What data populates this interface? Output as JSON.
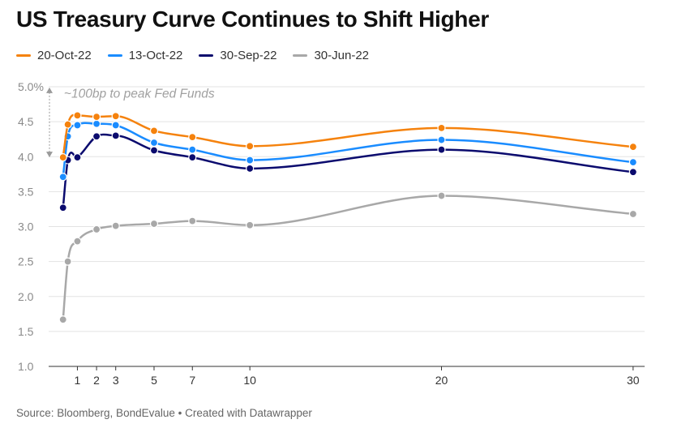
{
  "title": "US Treasury Curve Continues to Shift Higher",
  "footer": "Source: Bloomberg, BondEvalue • Created with Datawrapper",
  "colors": {
    "s2022_10_20": "#f5820d",
    "s2022_10_13": "#1a8cff",
    "s2022_09_30": "#0b0b6e",
    "s2022_06_30": "#a8a8a8",
    "grid": "#e3e3e3"
  },
  "chart_data": {
    "type": "line",
    "title": "US Treasury Curve Continues to Shift Higher",
    "xlabel": "",
    "ylabel": "",
    "x": [
      0.25,
      0.5,
      1,
      2,
      3,
      5,
      7,
      10,
      20,
      30
    ],
    "xticks": [
      1,
      2,
      3,
      5,
      7,
      10,
      20,
      30
    ],
    "xlim": [
      -0.5,
      30.6
    ],
    "yticks": [
      1.0,
      1.5,
      2.0,
      2.5,
      3.0,
      3.5,
      4.0,
      4.5,
      5.0
    ],
    "ytick_labels": [
      "1.0",
      "1.5",
      "2.0",
      "2.5",
      "3.0",
      "3.5",
      "4.0",
      "4.5",
      "5.0%"
    ],
    "ylim": [
      1.0,
      5.0
    ],
    "grid": true,
    "legend_position": "top-left",
    "series": [
      {
        "name": "20-Oct-22",
        "color_key": "s2022_10_20",
        "values": [
          3.99,
          4.46,
          4.59,
          4.57,
          4.58,
          4.37,
          4.28,
          4.15,
          4.41,
          4.14
        ]
      },
      {
        "name": "13-Oct-22",
        "color_key": "s2022_10_13",
        "values": [
          3.71,
          4.29,
          4.45,
          4.47,
          4.45,
          4.2,
          4.1,
          3.95,
          4.24,
          3.92
        ]
      },
      {
        "name": "30-Sep-22",
        "color_key": "s2022_09_30",
        "values": [
          3.27,
          3.95,
          3.99,
          4.29,
          4.3,
          4.09,
          3.99,
          3.83,
          4.1,
          3.78
        ]
      },
      {
        "name": "30-Jun-22",
        "color_key": "s2022_06_30",
        "values": [
          1.67,
          2.5,
          2.79,
          2.96,
          3.01,
          3.04,
          3.08,
          3.02,
          3.44,
          3.18
        ]
      }
    ],
    "annotations": [
      {
        "text": "~100bp to peak Fed Funds",
        "x": 0.3,
        "y": 4.9,
        "arrow_from": 4.99,
        "arrow_to": 3.99
      }
    ]
  }
}
